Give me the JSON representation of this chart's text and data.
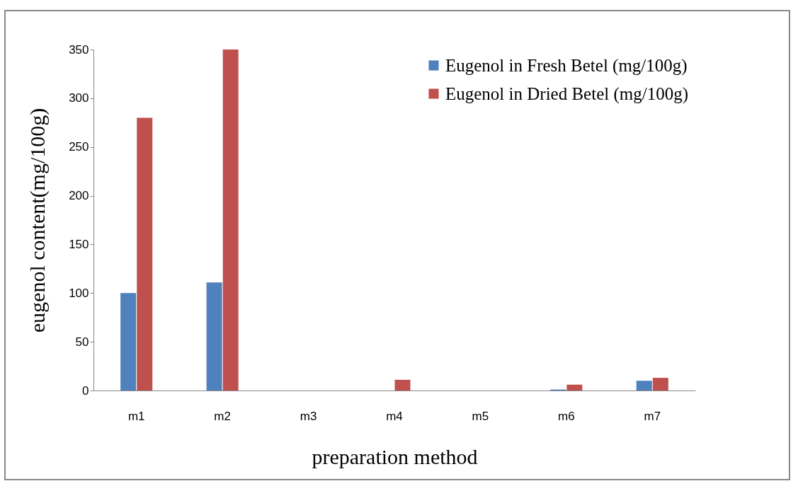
{
  "chart_data": {
    "type": "bar",
    "xlabel": "preparation method",
    "ylabel": "eugenol content(mg/100g)",
    "categories": [
      "m1",
      "m2",
      "m3",
      "m4",
      "m5",
      "m6",
      "m7"
    ],
    "series": [
      {
        "name": "Eugenol in Fresh Betel (mg/100g)",
        "color": "#4f81bd",
        "values": [
          100,
          111,
          0,
          0,
          0,
          1,
          10
        ]
      },
      {
        "name": "Eugenol in Dried Betel (mg/100g)",
        "color": "#c0504d",
        "values": [
          280,
          350,
          0,
          11,
          0,
          6,
          13
        ]
      }
    ],
    "ylim": [
      0,
      350
    ],
    "yticks": [
      0,
      50,
      100,
      150,
      200,
      250,
      300,
      350
    ],
    "grid": false,
    "legend": "top right"
  }
}
